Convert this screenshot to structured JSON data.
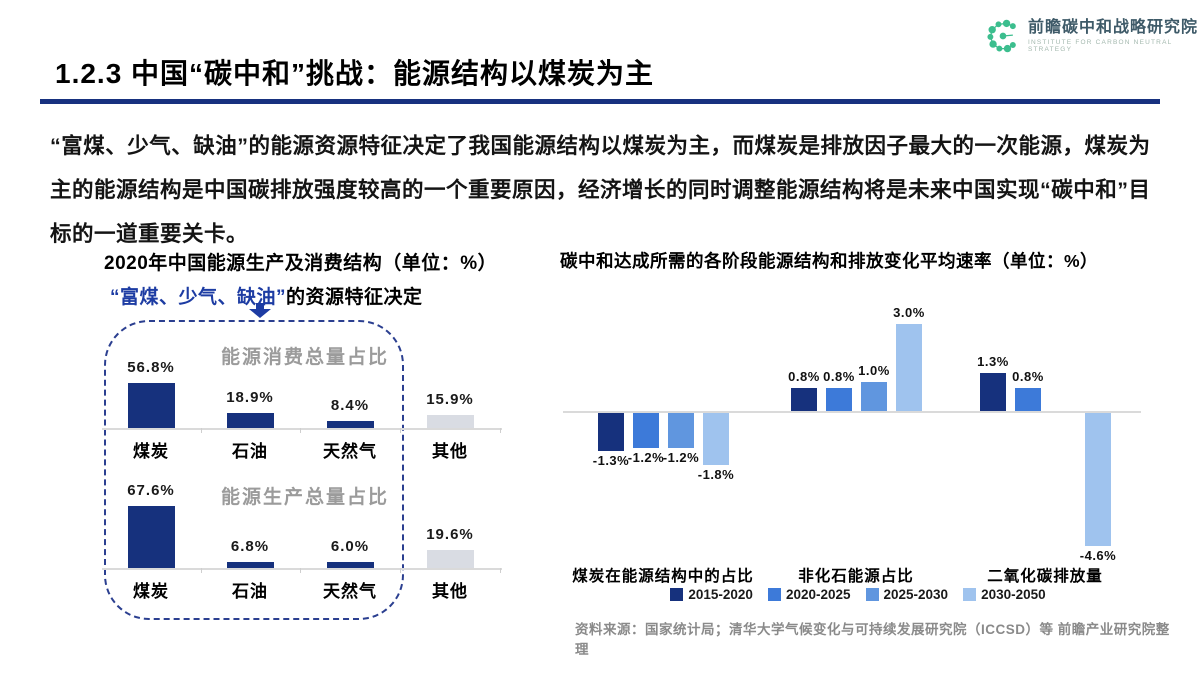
{
  "header": {
    "title": "1.2.3 中国“碳中和”挑战：能源结构以煤炭为主"
  },
  "logo": {
    "name_cn": "前瞻碳中和战略研究院",
    "name_en": "INSTITUTE FOR CARBON NEUTRAL STRATEGY",
    "icon": "molecule-c-icon",
    "color": "#3CBE8E"
  },
  "intro": "“富煤、少气、缺油”的能源资源特征决定了我国能源结构以煤炭为主，而煤炭是排放因子最大的一次能源，煤炭为主的能源结构是中国碳排放强度较高的一个重要原因，经济增长的同时调整能源结构将是未来中国实现“碳中和”目标的一道重要关卡。",
  "colors": {
    "accent_navy": "#17317F",
    "blue_2015_2020": "#16317D",
    "blue_2020_2025": "#3D7AD9",
    "blue_2025_2030": "#6096DF",
    "blue_2030_2050": "#9FC3EE",
    "gray_bar": "#D9DCE3",
    "subtitle_blue": "#1D3CA3"
  },
  "chart_data": [
    {
      "type": "bar",
      "title": "2020年中国能源生产及消费结构（单位：%）",
      "subtitle_highlight": "“富煤、少气、缺油”",
      "subtitle_rest": "的资源特征决定",
      "categories": [
        "煤炭",
        "石油",
        "天然气",
        "其他"
      ],
      "series": [
        {
          "name": "能源消费总量占比",
          "values": [
            56.8,
            18.9,
            8.4,
            15.9
          ]
        },
        {
          "name": "能源生产总量占比",
          "values": [
            67.6,
            6.8,
            6.0,
            19.6
          ]
        }
      ],
      "bar_colors": [
        "#16317D",
        "#16317D",
        "#16317D",
        "#D9DCE3"
      ],
      "ylim": [
        0,
        70
      ],
      "grid": false,
      "annotation": "虚线框圈出煤炭、石油、天然气三项"
    },
    {
      "type": "bar",
      "title": "碳中和达成所需的各阶段能源结构和排放变化平均速率（单位：%）",
      "categories": [
        "煤炭在能源结构中的占比",
        "非化石能源占比",
        "二氧化碳排放量"
      ],
      "series": [
        {
          "name": "2015-2020",
          "color": "#16317D",
          "values": [
            -1.3,
            0.8,
            1.3
          ]
        },
        {
          "name": "2020-2025",
          "color": "#3D7AD9",
          "values": [
            -1.2,
            0.8,
            0.8
          ]
        },
        {
          "name": "2025-2030",
          "color": "#6096DF",
          "values": [
            -1.2,
            1.0,
            null
          ]
        },
        {
          "name": "2030-2050",
          "color": "#9FC3EE",
          "values": [
            -1.8,
            3.0,
            -4.6
          ]
        }
      ],
      "ylim": [
        -4.6,
        3.0
      ],
      "grid": false,
      "legend_position": "bottom"
    }
  ],
  "source": "资料来源：国家统计局；清华大学气候变化与可持续发展研究院（ICCSD）等  前瞻产业研究院整理"
}
